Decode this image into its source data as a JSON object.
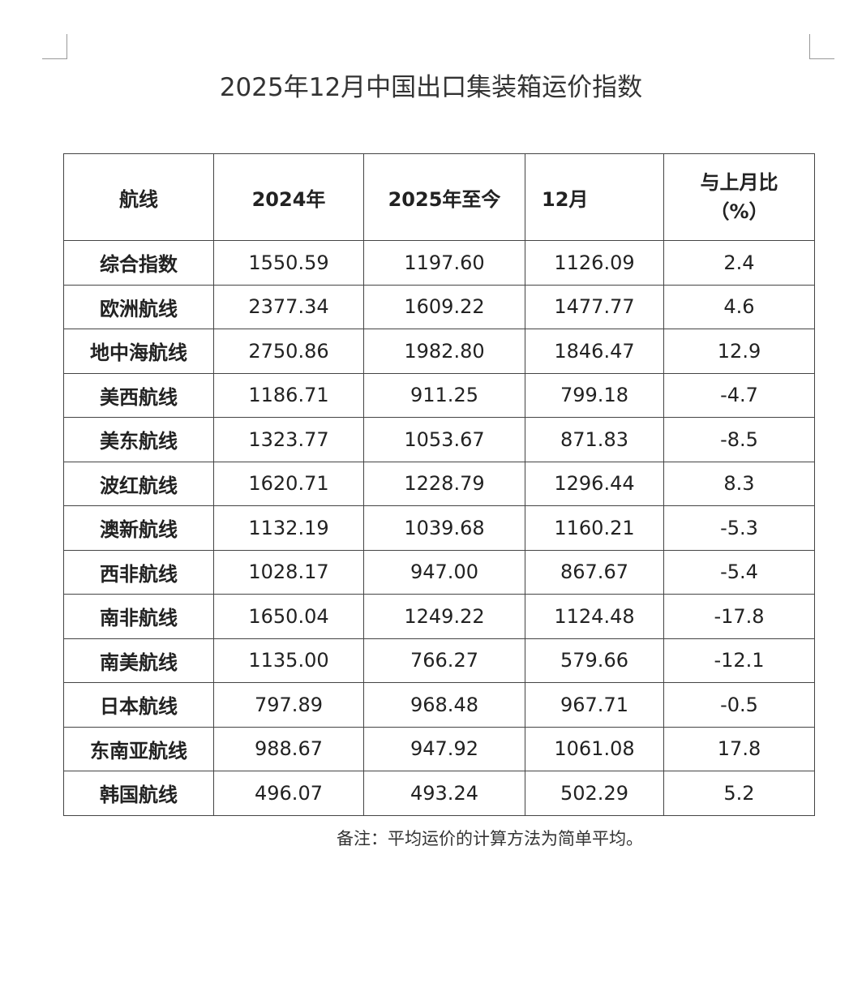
{
  "title": "2025年12月中国出口集装箱运价指数",
  "table": {
    "header": [
      "航线",
      "2024年",
      "2025年至今",
      "12月",
      "与上月比（%）"
    ],
    "rows": [
      [
        "综合指数",
        "1550.59",
        "1197.60",
        "1126.09",
        "2.4"
      ],
      [
        "欧洲航线",
        "2377.34",
        "1609.22",
        "1477.77",
        "4.6"
      ],
      [
        "地中海航线",
        "2750.86",
        "1982.80",
        "1846.47",
        "12.9"
      ],
      [
        "美西航线",
        "1186.71",
        "911.25",
        "799.18",
        "-4.7"
      ],
      [
        "美东航线",
        "1323.77",
        "1053.67",
        "871.83",
        "-8.5"
      ],
      [
        "波红航线",
        "1620.71",
        "1228.79",
        "1296.44",
        "8.3"
      ],
      [
        "澳新航线",
        "1132.19",
        "1039.68",
        "1160.21",
        "-5.3"
      ],
      [
        "西非航线",
        "1028.17",
        "947.00",
        "867.67",
        "-5.4"
      ],
      [
        "南非航线",
        "1650.04",
        "1249.22",
        "1124.48",
        "-17.8"
      ],
      [
        "南美航线",
        "1135.00",
        "766.27",
        "579.66",
        "-12.1"
      ],
      [
        "日本航线",
        "797.89",
        "968.48",
        "967.71",
        "-0.5"
      ],
      [
        "东南亚航线",
        "988.67",
        "947.92",
        "1061.08",
        "17.8"
      ],
      [
        "韩国航线",
        "496.07",
        "493.24",
        "502.29",
        "5.2"
      ]
    ]
  },
  "note": "备注：平均运价的计算方法为简单平均。"
}
